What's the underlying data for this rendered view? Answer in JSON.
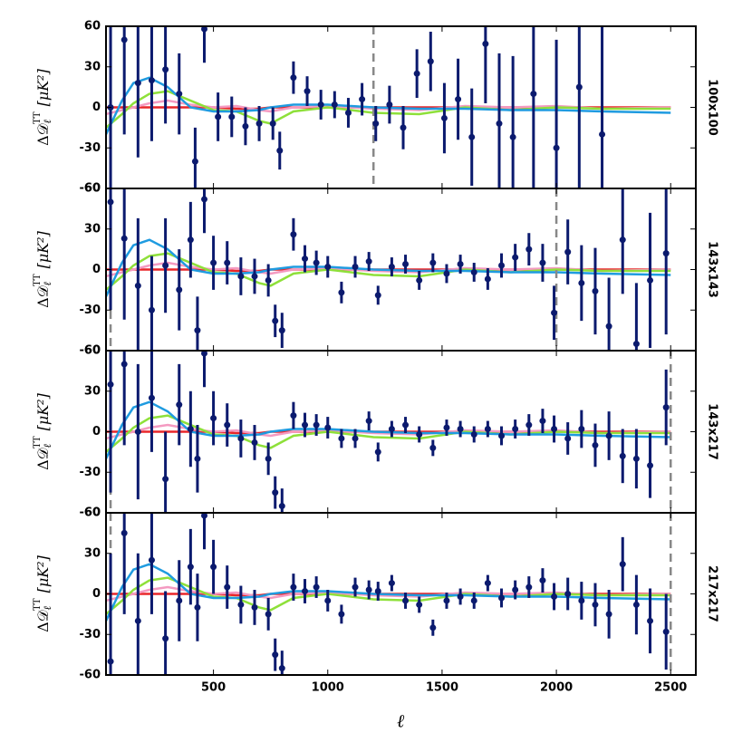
{
  "chart_data": {
    "type": "errorbar",
    "xlim": [
      30,
      2610
    ],
    "ylim": [
      -60,
      60
    ],
    "yticks": [
      -60,
      -30,
      0,
      30,
      60
    ],
    "xticks": [
      500,
      1000,
      1500,
      2000,
      2500
    ],
    "x_label": "ℓ",
    "y_label": {
      "main": "Δ𝒟",
      "sub": "ℓ",
      "sup": "TT",
      "unit": "[μK²]"
    },
    "point_color": "#0b1a6e",
    "model": {
      "x": [
        30,
        100,
        150,
        220,
        300,
        400,
        500,
        600,
        700,
        750,
        850,
        1000,
        1200,
        1400,
        1600,
        1800,
        2000,
        2200,
        2500
      ],
      "lines": [
        {
          "color": "#e8262a",
          "values": [
            0,
            0,
            0,
            0,
            0,
            0,
            0,
            -1,
            -1,
            0,
            0,
            0,
            0,
            0,
            0,
            0,
            0,
            0,
            0
          ]
        },
        {
          "color": "#f49ac1",
          "values": [
            -5,
            -2,
            0,
            3,
            5,
            2,
            0,
            1,
            -2,
            -3,
            0,
            1,
            -1,
            -2,
            1,
            0,
            1,
            -1,
            0
          ]
        },
        {
          "color": "#8ee03a",
          "values": [
            -15,
            -5,
            3,
            10,
            12,
            5,
            -2,
            -3,
            -10,
            -12,
            -3,
            0,
            -4,
            -5,
            0,
            -2,
            0,
            -1,
            -1
          ]
        },
        {
          "color": "#1f9be0",
          "values": [
            -20,
            5,
            18,
            22,
            15,
            0,
            -3,
            -3,
            -2,
            0,
            2,
            2,
            0,
            -1,
            -1,
            -2,
            -2,
            -3,
            -4
          ]
        }
      ]
    },
    "panels": [
      {
        "label": "100x100",
        "lmin": 50,
        "lmax": 1200,
        "x": [
          50,
          110,
          170,
          230,
          290,
          350,
          420,
          460,
          520,
          580,
          640,
          700,
          760,
          790,
          850,
          910,
          970,
          1030,
          1090,
          1150,
          1210,
          1270,
          1330,
          1390,
          1450,
          1510,
          1570,
          1630,
          1690,
          1750,
          1810,
          1900,
          2000,
          2100,
          2200
        ],
        "values": [
          0,
          50,
          18,
          20,
          28,
          10,
          -40,
          58,
          -7,
          -7,
          -14,
          -12,
          -12,
          -32,
          22,
          12,
          2,
          2,
          -4,
          6,
          -12,
          2,
          -15,
          25,
          34,
          -8,
          6,
          -22,
          47,
          -12,
          -22,
          10,
          -30,
          15,
          -20
        ],
        "errors": [
          80,
          70,
          55,
          45,
          40,
          30,
          25,
          25,
          18,
          15,
          14,
          13,
          12,
          14,
          12,
          11,
          11,
          10,
          11,
          12,
          13,
          14,
          16,
          18,
          22,
          26,
          30,
          36,
          44,
          52,
          60,
          70,
          80,
          90,
          100
        ]
      },
      {
        "label": "143x143",
        "lmin": 50,
        "lmax": 2000,
        "x": [
          50,
          110,
          170,
          230,
          290,
          350,
          400,
          430,
          460,
          500,
          560,
          620,
          680,
          740,
          770,
          800,
          850,
          900,
          950,
          1000,
          1060,
          1120,
          1180,
          1220,
          1280,
          1340,
          1400,
          1460,
          1520,
          1580,
          1640,
          1700,
          1760,
          1820,
          1880,
          1940,
          1990,
          2050,
          2110,
          2170,
          2230,
          2290,
          2350,
          2410,
          2480
        ],
        "values": [
          50,
          23,
          -12,
          -30,
          3,
          -15,
          22,
          -45,
          52,
          5,
          5,
          -5,
          -5,
          -8,
          -38,
          -45,
          26,
          8,
          5,
          2,
          -17,
          2,
          6,
          -19,
          2,
          4,
          -8,
          5,
          -3,
          4,
          -2,
          -7,
          3,
          9,
          15,
          5,
          -32,
          13,
          -10,
          -16,
          -42,
          22,
          -55,
          -8,
          12
        ],
        "errors": [
          80,
          60,
          50,
          40,
          35,
          30,
          28,
          25,
          25,
          20,
          16,
          14,
          13,
          12,
          12,
          13,
          12,
          10,
          9,
          8,
          8,
          8,
          7,
          7,
          7,
          7,
          7,
          7,
          7,
          7,
          7,
          8,
          9,
          10,
          12,
          14,
          20,
          24,
          28,
          32,
          36,
          40,
          45,
          50,
          60
        ]
      },
      {
        "label": "143x217",
        "lmin": 50,
        "lmax": 2500,
        "x": [
          50,
          110,
          170,
          230,
          290,
          350,
          400,
          430,
          460,
          500,
          560,
          620,
          680,
          740,
          770,
          800,
          850,
          900,
          950,
          1000,
          1060,
          1120,
          1180,
          1220,
          1280,
          1340,
          1400,
          1460,
          1520,
          1580,
          1640,
          1700,
          1760,
          1820,
          1880,
          1940,
          1990,
          2050,
          2110,
          2170,
          2230,
          2290,
          2350,
          2410,
          2480
        ],
        "values": [
          35,
          50,
          0,
          25,
          -35,
          20,
          2,
          -20,
          58,
          10,
          5,
          -5,
          -8,
          -20,
          -45,
          -55,
          12,
          5,
          5,
          3,
          -5,
          -5,
          8,
          -15,
          2,
          5,
          -2,
          -12,
          3,
          2,
          -2,
          2,
          -3,
          2,
          5,
          8,
          2,
          -5,
          2,
          -10,
          -3,
          -18,
          -20,
          -25,
          18
        ],
        "errors": [
          80,
          60,
          50,
          40,
          35,
          30,
          28,
          25,
          25,
          20,
          16,
          14,
          13,
          12,
          12,
          13,
          10,
          9,
          8,
          8,
          7,
          7,
          7,
          7,
          6,
          6,
          6,
          6,
          6,
          6,
          6,
          6,
          7,
          7,
          8,
          9,
          10,
          12,
          14,
          16,
          18,
          20,
          22,
          24,
          28
        ]
      },
      {
        "label": "217x217",
        "lmin": 50,
        "lmax": 2500,
        "x": [
          50,
          110,
          170,
          230,
          290,
          350,
          400,
          430,
          460,
          500,
          560,
          620,
          680,
          740,
          770,
          800,
          850,
          900,
          950,
          1000,
          1060,
          1120,
          1180,
          1220,
          1280,
          1340,
          1400,
          1460,
          1520,
          1580,
          1640,
          1700,
          1760,
          1820,
          1880,
          1940,
          1990,
          2050,
          2110,
          2170,
          2230,
          2290,
          2350,
          2410,
          2480
        ],
        "values": [
          -50,
          45,
          -20,
          25,
          -33,
          -5,
          20,
          -10,
          58,
          20,
          5,
          -8,
          -10,
          -15,
          -45,
          -55,
          5,
          2,
          5,
          -5,
          -15,
          5,
          3,
          2,
          8,
          -5,
          -8,
          -25,
          -5,
          -2,
          -5,
          8,
          -3,
          3,
          5,
          10,
          -2,
          0,
          -5,
          -8,
          -15,
          22,
          -8,
          -20,
          -28
        ],
        "errors": [
          80,
          60,
          50,
          40,
          35,
          30,
          28,
          25,
          25,
          20,
          16,
          14,
          13,
          12,
          12,
          13,
          10,
          9,
          8,
          8,
          7,
          7,
          7,
          7,
          6,
          6,
          6,
          6,
          6,
          6,
          6,
          6,
          7,
          7,
          8,
          9,
          10,
          12,
          14,
          16,
          18,
          20,
          22,
          24,
          28
        ]
      }
    ]
  }
}
